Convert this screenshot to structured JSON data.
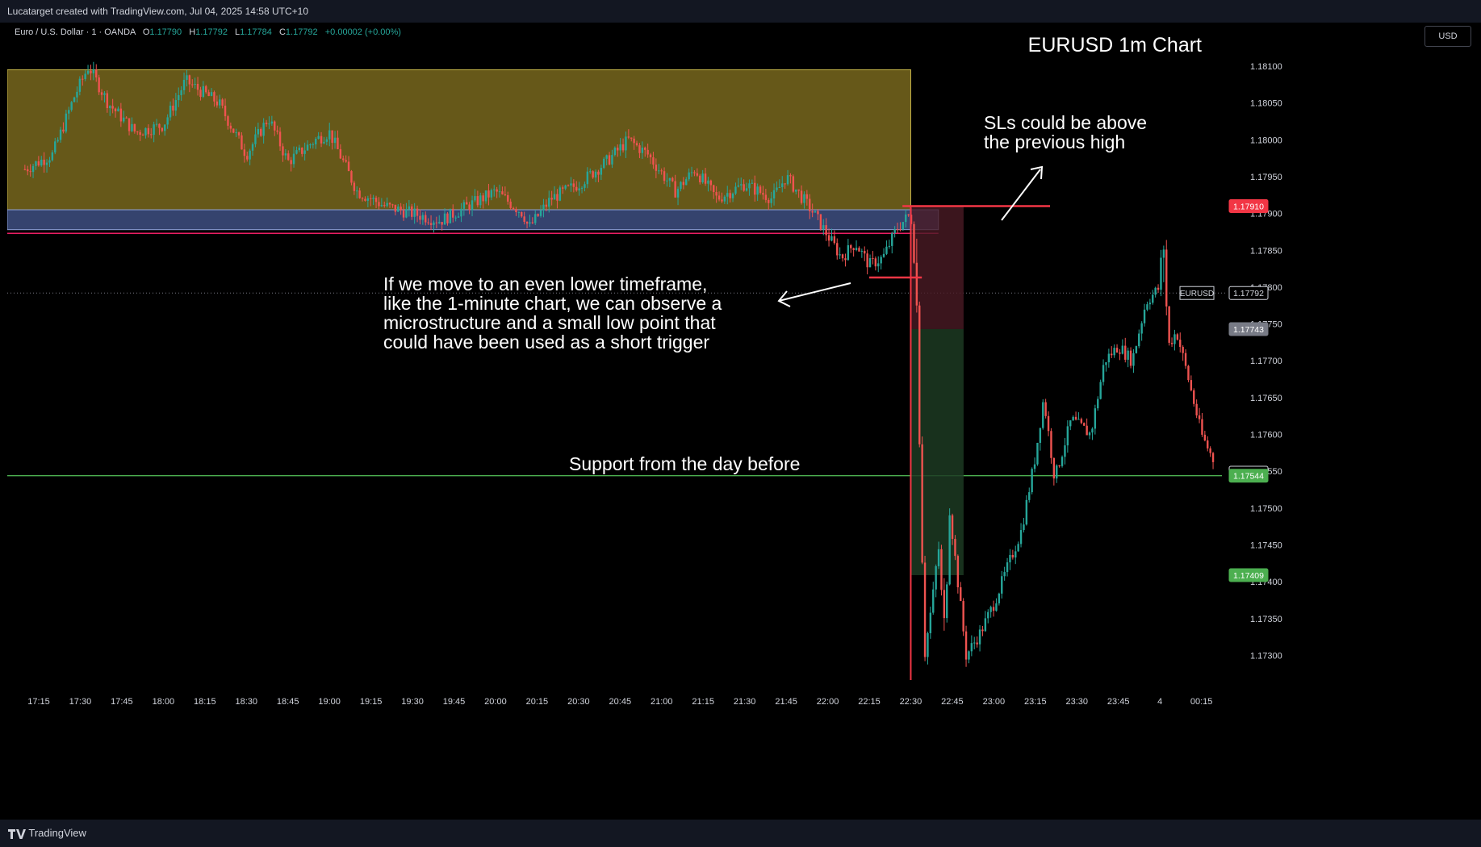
{
  "header": {
    "caption": "Lucatarget created with TradingView.com, Jul 04, 2025 14:58 UTC+10"
  },
  "footer": {
    "brand": "TradingView",
    "logo_icon": "tradingview-logo-icon"
  },
  "toolbar": {
    "currency_button": "USD"
  },
  "legend": {
    "symbol": "Euro / U.S. Dollar · 1 · OANDA",
    "open_label": "O",
    "open": "1.17790",
    "high_label": "H",
    "high": "1.17792",
    "low_label": "L",
    "low": "1.17784",
    "close_label": "C",
    "close": "1.17792",
    "change": "+0.00002 (+0.00%)"
  },
  "chart_data": {
    "type": "candlestick",
    "symbol": "EURUSD",
    "timeframe": "1",
    "title": "EURUSD 1m Chart",
    "ylim": [
      1.1726,
      1.1815
    ],
    "y_ticks": [
      "1.18100",
      "1.18050",
      "1.18000",
      "1.17950",
      "1.17900",
      "1.17850",
      "1.17800",
      "1.17750",
      "1.17700",
      "1.17650",
      "1.17600",
      "1.17550",
      "1.17500",
      "1.17450",
      "1.17400",
      "1.17350",
      "1.17300"
    ],
    "x_ticks": [
      "17:15",
      "17:30",
      "17:45",
      "18:00",
      "18:15",
      "18:30",
      "18:45",
      "19:00",
      "19:15",
      "19:30",
      "19:45",
      "20:00",
      "20:15",
      "20:30",
      "20:45",
      "21:00",
      "21:15",
      "21:30",
      "21:45",
      "22:00",
      "22:15",
      "22:30",
      "22:45",
      "23:00",
      "23:15",
      "23:30",
      "23:45",
      "4",
      "00:15"
    ],
    "price_path": [
      [
        "17:10",
        1.1796
      ],
      [
        "17:20",
        1.1798
      ],
      [
        "17:28",
        1.1806
      ],
      [
        "17:33",
        1.181
      ],
      [
        "17:40",
        1.1805
      ],
      [
        "17:50",
        1.1801
      ],
      [
        "18:00",
        1.1802
      ],
      [
        "18:08",
        1.1808
      ],
      [
        "18:20",
        1.1805
      ],
      [
        "18:30",
        1.1798
      ],
      [
        "18:38",
        1.1803
      ],
      [
        "18:45",
        1.1797
      ],
      [
        "18:55",
        1.18
      ],
      [
        "19:00",
        1.1801
      ],
      [
        "19:10",
        1.1793
      ],
      [
        "19:20",
        1.1791
      ],
      [
        "19:30",
        1.179
      ],
      [
        "19:40",
        1.1789
      ],
      [
        "19:50",
        1.1791
      ],
      [
        "20:00",
        1.1793
      ],
      [
        "20:10",
        1.179
      ],
      [
        "20:12",
        1.1788
      ],
      [
        "20:20",
        1.1792
      ],
      [
        "20:30",
        1.1794
      ],
      [
        "20:40",
        1.1797
      ],
      [
        "20:48",
        1.18
      ],
      [
        "20:55",
        1.1798
      ],
      [
        "21:05",
        1.1793
      ],
      [
        "21:12",
        1.1796
      ],
      [
        "21:20",
        1.1792
      ],
      [
        "21:30",
        1.1794
      ],
      [
        "21:40",
        1.1792
      ],
      [
        "21:45",
        1.1795
      ],
      [
        "21:55",
        1.179
      ],
      [
        "22:00",
        1.1787
      ],
      [
        "22:05",
        1.1784
      ],
      [
        "22:10",
        1.1786
      ],
      [
        "22:15",
        1.1783
      ],
      [
        "22:20",
        1.1784
      ],
      [
        "22:25",
        1.1788
      ],
      [
        "22:30",
        1.179
      ],
      [
        "22:32",
        1.178
      ],
      [
        "22:35",
        1.173
      ],
      [
        "22:38",
        1.1738
      ],
      [
        "22:40",
        1.1745
      ],
      [
        "22:42",
        1.1733
      ],
      [
        "22:44",
        1.175
      ],
      [
        "22:47",
        1.174
      ],
      [
        "22:50",
        1.173
      ],
      [
        "22:55",
        1.1733
      ],
      [
        "23:00",
        1.1737
      ],
      [
        "23:05",
        1.1742
      ],
      [
        "23:10",
        1.1747
      ],
      [
        "23:15",
        1.1757
      ],
      [
        "23:18",
        1.1765
      ],
      [
        "23:22",
        1.1754
      ],
      [
        "23:28",
        1.1762
      ],
      [
        "23:35",
        1.176
      ],
      [
        "23:40",
        1.177
      ],
      [
        "23:45",
        1.1772
      ],
      [
        "23:50",
        1.177
      ],
      [
        "23:55",
        1.1778
      ],
      [
        "00:00",
        1.178
      ],
      [
        "00:01",
        1.1789
      ],
      [
        "00:03",
        1.1772
      ],
      [
        "00:06",
        1.1774
      ],
      [
        "00:10",
        1.1768
      ],
      [
        "00:15",
        1.176
      ],
      [
        "00:20",
        1.1756
      ]
    ],
    "zones": [
      {
        "name": "supply-zone",
        "color": "#6b5d1a",
        "y_top": 1.18095,
        "y_bottom": 1.17905,
        "x_start": "17:10",
        "x_end": "22:30"
      },
      {
        "name": "blue-zone",
        "color": "#3b4a7a",
        "y_top": 1.17905,
        "y_bottom": 1.17878,
        "x_start": "17:10",
        "x_end": "22:40"
      }
    ],
    "lines": [
      {
        "name": "support-line",
        "color": "#4caf50",
        "y": 1.17544
      },
      {
        "name": "current-price-line",
        "color": "#787b86",
        "y": 1.17792
      },
      {
        "name": "pink-line",
        "color": "#e91e63",
        "y": 1.17873
      }
    ],
    "position": {
      "type": "short",
      "entry": 1.17743,
      "stop": 1.1791,
      "target": 1.17409,
      "x_start": "22:30",
      "x_end": "22:45"
    },
    "price_labels": [
      {
        "value": "1.17910",
        "color": "#f23645",
        "text_color": "#ffffff"
      },
      {
        "value": "1.17792",
        "color": "#000000",
        "text_color": "#d1d4dc",
        "tag": "EURUSD"
      },
      {
        "value": "1.17743",
        "color": "#787b86",
        "text_color": "#ffffff"
      },
      {
        "value": "1.17548",
        "color": "#000000",
        "text_color": "#d1d4dc"
      },
      {
        "value": "1.17544",
        "color": "#4caf50",
        "text_color": "#ffffff"
      },
      {
        "value": "1.17409",
        "color": "#4caf50",
        "text_color": "#ffffff"
      }
    ],
    "annotations": [
      {
        "name": "sl-note",
        "lines": [
          "SLs could be above",
          "the previous high"
        ]
      },
      {
        "name": "microstructure-note",
        "lines": [
          "If we move to an even lower timeframe,",
          "like the 1-minute chart, we can observe a",
          "microstructure and a small low point that",
          "could have been used as a short trigger"
        ]
      },
      {
        "name": "support-note",
        "lines": [
          "Support from the day before"
        ]
      }
    ]
  }
}
